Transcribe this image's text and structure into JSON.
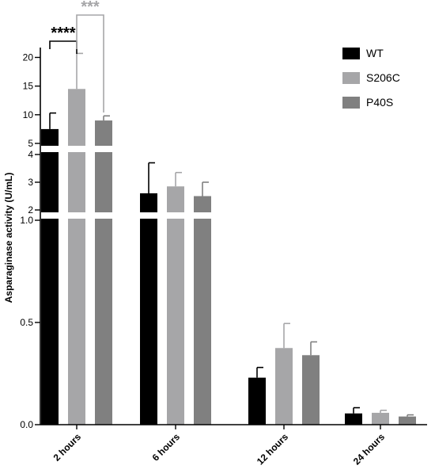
{
  "chart_data": {
    "type": "bar",
    "ylabel": "Asparaginase activity (U/mL)",
    "categories": [
      "2 hours",
      "6 hours",
      "12 hours",
      "24 hours"
    ],
    "series": [
      {
        "name": "WT",
        "color": "#000000",
        "values": [
          7.5,
          2.6,
          0.23,
          0.055
        ],
        "errors": [
          2.8,
          1.1,
          0.05,
          0.028
        ]
      },
      {
        "name": "S206C",
        "color": "#a6a6a8",
        "values": [
          14.5,
          2.85,
          0.375,
          0.058
        ],
        "errors": [
          6.2,
          0.5,
          0.12,
          0.012
        ]
      },
      {
        "name": "P40S",
        "color": "#808080",
        "values": [
          9.0,
          2.5,
          0.34,
          0.04
        ],
        "errors": [
          0.8,
          0.5,
          0.065,
          0.008
        ]
      }
    ],
    "y_axis_segments": [
      {
        "range": [
          5,
          22
        ],
        "ticks": [
          "5",
          "10",
          "15",
          "20"
        ]
      },
      {
        "range": [
          2,
          4
        ],
        "ticks": [
          "2",
          "3",
          "4"
        ]
      },
      {
        "range": [
          0,
          1.0
        ],
        "ticks": [
          "0.0",
          "0.5",
          "1.0"
        ]
      }
    ],
    "annotations": [
      {
        "text": "****",
        "compare": [
          "WT",
          "S206C"
        ],
        "category": "2 hours",
        "color": "#000000"
      },
      {
        "text": "***",
        "compare": [
          "S206C",
          "P40S"
        ],
        "category": "2 hours",
        "color": "#a6a6a8"
      }
    ],
    "legend_position": "top-right"
  }
}
